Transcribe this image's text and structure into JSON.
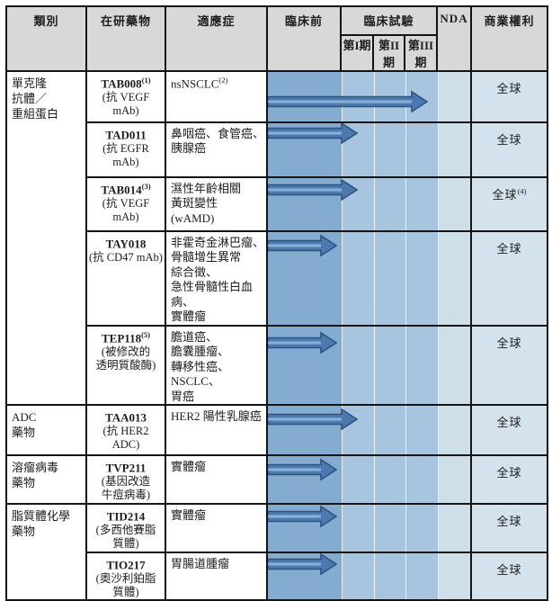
{
  "header": {
    "category": "類別",
    "drug": "在研藥物",
    "indication": "適應症",
    "preclinical": "臨床前",
    "clinical_trials": "臨床試驗",
    "phase1": "第I期",
    "phase2": "第II期",
    "phase3": "第III期",
    "nda": "NDA",
    "rights": "商業權利"
  },
  "colors": {
    "header_bg": "#d8d8d8",
    "pre_band": "#84acd1",
    "phase_band": "#a7c5de",
    "nda_band": "#cfdfea",
    "rights_bg": "#d3e2ec",
    "arrow_fill": "#4c7aae",
    "arrow_outline": "#2f5380",
    "arrow_stripe": "#86afd8",
    "grid_border": "#141414"
  },
  "categories": [
    {
      "label": "單克隆\n抗體／\n重組蛋白"
    },
    {
      "label": "ADC\n藥物"
    },
    {
      "label": "溶瘤病毒\n藥物"
    },
    {
      "label": "脂質體化學\n藥物"
    }
  ],
  "rows": [
    {
      "code": "TAB008",
      "sup": "(1)",
      "desc": "(抗 VEGF mAb)",
      "indication": "nsNSCLC",
      "indication_sup": "(2)",
      "stage": "phase3",
      "rights": "全球",
      "rights_sup": ""
    },
    {
      "code": "TAD011",
      "sup": "",
      "desc": "(抗 EGFR mAb)",
      "indication": "鼻咽癌、食管癌、\n胰腺癌",
      "indication_sup": "",
      "stage": "phase1",
      "rights": "全球",
      "rights_sup": ""
    },
    {
      "code": "TAB014",
      "sup": "(3)",
      "desc": "(抗 VEGF mAb)",
      "indication": "濕性年齡相關\n黃斑變性\n(wAMD)",
      "indication_sup": "",
      "stage": "phase1",
      "rights": "全球",
      "rights_sup": "(4)"
    },
    {
      "code": "TAY018",
      "sup": "",
      "desc": "(抗 CD47 mAb)",
      "indication": "非霍奇金淋巴瘤、\n骨髓增生異常\n綜合徵、\n急性骨髓性白血病、\n實體瘤",
      "indication_sup": "",
      "stage": "preclinical",
      "rights": "全球",
      "rights_sup": ""
    },
    {
      "code": "TEP118",
      "sup": "(5)",
      "desc": "(被修改的\n透明質酸酶)",
      "indication": "膽道癌、\n膽囊腫瘤、\n轉移性癌、\nNSCLC、\n胃癌",
      "indication_sup": "",
      "stage": "preclinical",
      "rights": "全球",
      "rights_sup": ""
    },
    {
      "code": "TAA013",
      "sup": "",
      "desc": "(抗 HER2\nADC)",
      "indication": "HER2 陽性乳腺癌",
      "indication_sup": "",
      "stage": "phase1",
      "rights": "全球",
      "rights_sup": ""
    },
    {
      "code": "TVP211",
      "sup": "",
      "desc": "(基因改造\n牛痘病毒)",
      "indication": "實體瘤",
      "indication_sup": "",
      "stage": "preclinical",
      "rights": "全球",
      "rights_sup": ""
    },
    {
      "code": "TID214",
      "sup": "",
      "desc": "(多西他賽脂\n質體)",
      "indication": "實體瘤",
      "indication_sup": "",
      "stage": "preclinical",
      "rights": "全球",
      "rights_sup": ""
    },
    {
      "code": "TIO217",
      "sup": "",
      "desc": "(奧沙利鉑脂\n質體)",
      "indication": "胃腸道腫瘤",
      "indication_sup": "",
      "stage": "preclinical",
      "rights": "全球",
      "rights_sup": ""
    }
  ],
  "stage_legend": {
    "preclinical": "arrow ends within 臨床前",
    "phase1": "arrow reaches 第I期",
    "phase3": "arrow reaches 第III期"
  }
}
